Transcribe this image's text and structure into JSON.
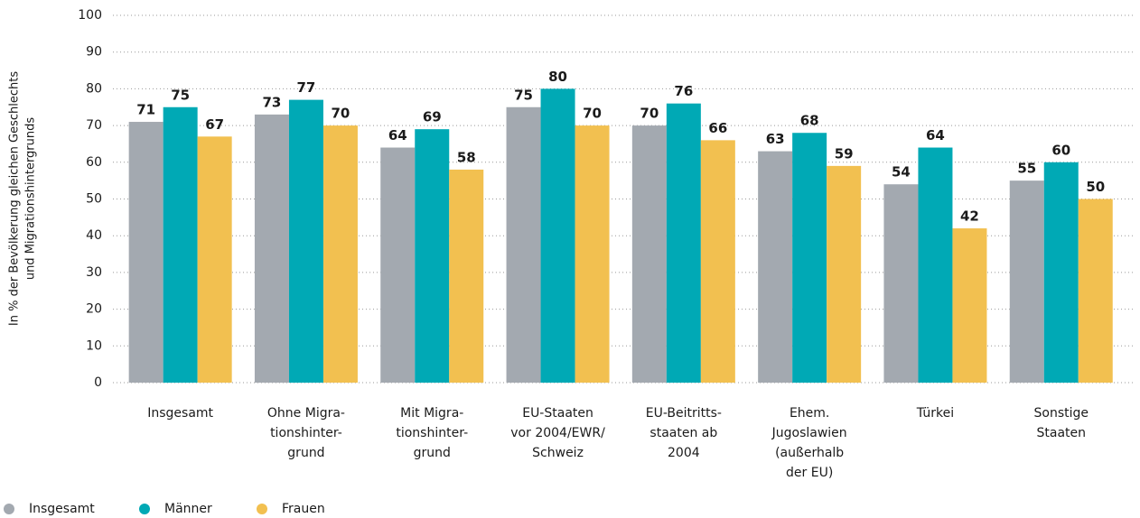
{
  "chart_data": {
    "type": "bar",
    "y_label": [
      "In % der Bevölkerung gleichen Geschlechts",
      "und Migrationshintergrunds"
    ],
    "categories": [
      [
        "Insgesamt"
      ],
      [
        "Ohne Migra-",
        "tionshinter-",
        "grund"
      ],
      [
        "Mit Migra-",
        "tionshinter-",
        "grund"
      ],
      [
        "EU-Staaten",
        "vor 2004/EWR/",
        "Schweiz"
      ],
      [
        "EU-Beitritts-",
        "staaten ab",
        "2004"
      ],
      [
        "Ehem.",
        "Jugoslawien",
        "(außerhalb",
        "der EU)"
      ],
      [
        "Türkei"
      ],
      [
        "Sonstige",
        "Staaten"
      ]
    ],
    "series": [
      {
        "name": "Insgesamt",
        "color": "#a3a9b0",
        "values": [
          71,
          73,
          64,
          75,
          70,
          63,
          54,
          55
        ]
      },
      {
        "name": "Männer",
        "color": "#00a9b5",
        "values": [
          75,
          77,
          69,
          80,
          76,
          68,
          64,
          60
        ]
      },
      {
        "name": "Frauen",
        "color": "#f2c050",
        "values": [
          67,
          70,
          58,
          70,
          66,
          59,
          42,
          50
        ]
      }
    ],
    "ylim": [
      0,
      100
    ],
    "yticks": [
      0,
      10,
      20,
      30,
      40,
      50,
      60,
      70,
      80,
      90,
      100
    ],
    "grid": true,
    "legend": "bottom-left"
  }
}
